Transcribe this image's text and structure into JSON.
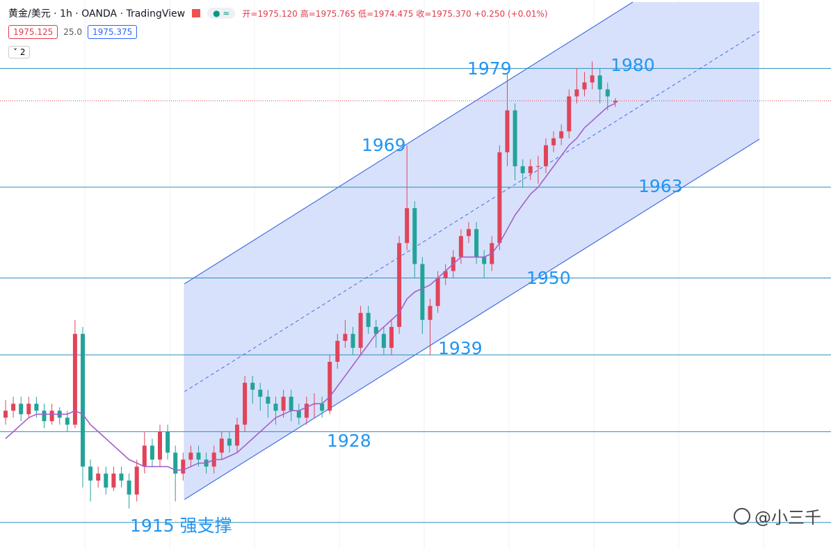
{
  "header": {
    "symbol": "黄金/美元 · 1h · OANDA · TradingView",
    "ohlc": [
      "开=1975.120",
      "高=1975.765",
      "低=1974.475",
      "收=1975.370",
      "+0.250 (+0.01%)"
    ],
    "price_boxes": [
      "1975.125",
      "25.0",
      "1975.375"
    ],
    "indicator_count": "2"
  },
  "watermark": "@小三千",
  "chart_data": {
    "type": "candlestick",
    "ylim": [
      1911.2,
      1989.8
    ],
    "up_color": "#e0445a",
    "down_color": "#22a39a",
    "open": [
      1930,
      1931,
      1932,
      1930.5,
      1932,
      1931,
      1929.5,
      1931,
      1930,
      1929,
      1942,
      1923,
      1921,
      1922,
      1920,
      1922,
      1921,
      1919,
      1923,
      1926,
      1924,
      1928,
      1925,
      1922,
      1924,
      1925,
      1924,
      1923,
      1925,
      1927,
      1926,
      1929,
      1935,
      1934,
      1933,
      1932,
      1931,
      1933,
      1931,
      1930,
      1932,
      1932,
      1931,
      1938,
      1941,
      1942,
      1940,
      1945,
      1943,
      1942,
      1940,
      1943,
      1955,
      1960,
      1952,
      1944,
      1946,
      1950,
      1951,
      1953,
      1956,
      1957,
      1953,
      1952,
      1955,
      1968,
      1974,
      1966,
      1965,
      1966,
      1966,
      1969,
      1970,
      1971,
      1976,
      1977,
      1978,
      1979,
      1977,
      1975.12
    ],
    "high": [
      1932.5,
      1933,
      1933,
      1933,
      1933,
      1932,
      1932,
      1931.5,
      1931,
      1944,
      1943,
      1924,
      1923,
      1923,
      1923,
      1923,
      1922,
      1924,
      1928,
      1927,
      1929,
      1929,
      1926,
      1925,
      1926,
      1926,
      1925,
      1926,
      1928,
      1928,
      1930,
      1936,
      1936,
      1935,
      1934,
      1933,
      1934,
      1934,
      1932,
      1933,
      1933.5,
      1933,
      1939,
      1942,
      1944,
      1943,
      1946,
      1946,
      1944,
      1943,
      1944,
      1956,
      1969,
      1961,
      1953,
      1947,
      1951,
      1952,
      1954,
      1957,
      1958,
      1958,
      1954,
      1956,
      1969,
      1979.3,
      1975,
      1967,
      1967,
      1967.5,
      1970,
      1971,
      1972,
      1977,
      1980,
      1979.5,
      1981,
      1980,
      1978,
      1975.765
    ],
    "low": [
      1929,
      1930,
      1929.5,
      1930,
      1930,
      1928.5,
      1929,
      1929,
      1928,
      1928.5,
      1920,
      1918,
      1920,
      1919,
      1919.5,
      1920,
      1917,
      1918,
      1922,
      1923,
      1923,
      1924,
      1918,
      1921,
      1923,
      1923,
      1922,
      1922,
      1924,
      1925,
      1925,
      1928,
      1932,
      1931,
      1930,
      1929,
      1930,
      1929.5,
      1929,
      1929,
      1930,
      1930,
      1930.5,
      1937,
      1940,
      1939,
      1939,
      1942,
      1940,
      1939,
      1939,
      1942,
      1954,
      1950,
      1942,
      1939,
      1945,
      1949,
      1950,
      1952,
      1955,
      1952,
      1950,
      1951,
      1954,
      1966,
      1964,
      1963,
      1964,
      1963.5,
      1965,
      1968,
      1969,
      1970,
      1975,
      1976,
      1977,
      1975,
      1974,
      1974.475
    ],
    "close": [
      1931,
      1932,
      1930.5,
      1932,
      1931,
      1929.5,
      1931,
      1930,
      1929,
      1942,
      1923,
      1921,
      1922,
      1920,
      1922,
      1921,
      1919,
      1923,
      1926,
      1924,
      1928,
      1925,
      1922,
      1924,
      1925,
      1924,
      1923,
      1925,
      1927,
      1926,
      1929,
      1935,
      1934,
      1933,
      1932,
      1931,
      1933,
      1931,
      1930,
      1932,
      1932,
      1931,
      1938,
      1941,
      1942,
      1940,
      1945,
      1943,
      1942,
      1940,
      1943,
      1955,
      1960,
      1952,
      1944,
      1946,
      1950,
      1951,
      1953,
      1956,
      1957,
      1953,
      1952,
      1955,
      1968,
      1974,
      1966,
      1965,
      1966,
      1966,
      1969,
      1970,
      1971,
      1976,
      1977,
      1978,
      1979,
      1977,
      1976,
      1975.37
    ],
    "ma": {
      "color": "#a35fc9",
      "values": [
        1927,
        1928,
        1929,
        1930,
        1930.5,
        1930.5,
        1930.5,
        1930.5,
        1930.5,
        1931,
        1930.5,
        1929,
        1928,
        1927,
        1926,
        1925,
        1924,
        1923.5,
        1923,
        1923,
        1923,
        1923,
        1922.5,
        1922.5,
        1923,
        1923.5,
        1923.5,
        1924,
        1924,
        1924.5,
        1925,
        1926,
        1927,
        1928,
        1929,
        1930,
        1930.5,
        1931,
        1931,
        1931.5,
        1932,
        1932,
        1933,
        1934.5,
        1936,
        1937.5,
        1939,
        1940.5,
        1942,
        1943,
        1944,
        1945,
        1947,
        1948,
        1948.5,
        1949,
        1950,
        1951,
        1952,
        1953,
        1953,
        1953,
        1953,
        1953.5,
        1955,
        1957,
        1959,
        1960.5,
        1962,
        1963,
        1964.5,
        1966,
        1967.5,
        1969,
        1970,
        1971.5,
        1972.5,
        1973.5,
        1974.5,
        1975
      ]
    },
    "levels": [
      1980,
      1963,
      1950,
      1939,
      1928,
      1915
    ],
    "level_color": "#2a8cc0",
    "annotations": [
      "1979",
      "1980",
      "1969",
      "1963",
      "1950",
      "1939",
      "1928",
      "1915 强支撑"
    ],
    "annotation_color": "#2196f3"
  }
}
